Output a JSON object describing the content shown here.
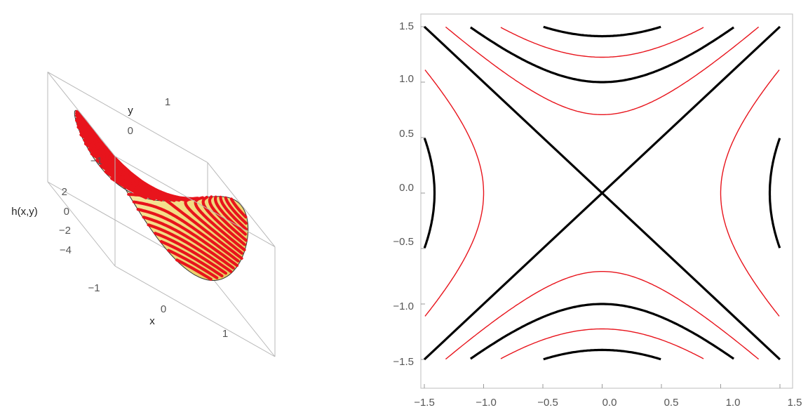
{
  "chart_data": [
    {
      "type": "surface3d",
      "function": "h(x,y) = x^2 - y^2",
      "xlabel": "x",
      "ylabel": "y",
      "zlabel": "h(x,y)",
      "x_ticks": [
        "−1",
        "0",
        "1"
      ],
      "y_ticks": [
        "−1",
        "0",
        "1"
      ],
      "z_ticks": [
        "2",
        "0",
        "−2",
        "−4"
      ],
      "xlim": [
        -1.5,
        1.5
      ],
      "ylim": [
        -1.5,
        1.5
      ],
      "zlim": [
        -4.5,
        2.3
      ],
      "surface_color": "#f3e08a",
      "contour_color": "#e8141c",
      "contour_levels": [
        -2.0,
        -1.75,
        -1.5,
        -1.25,
        -1.0,
        -0.75,
        -0.5,
        -0.25,
        0.0,
        0.25,
        0.5,
        0.75,
        1.0,
        1.25,
        1.5,
        1.75,
        2.0
      ],
      "domain": "disk",
      "domain_radius": 1.5
    },
    {
      "type": "contour",
      "function": "h(x,y) = x^2 - y^2",
      "xlim": [
        -1.5,
        1.5
      ],
      "ylim": [
        -1.5,
        1.5
      ],
      "x_ticks": [
        "−1.5",
        "−1.0",
        "−0.5",
        "0.0",
        "0.5",
        "1.0",
        "1.5"
      ],
      "y_ticks": [
        "1.5",
        "1.0",
        "0.5",
        "0.0",
        "−0.5",
        "−1.0",
        "−1.5"
      ],
      "x_tick_values": [
        -1.5,
        -1.0,
        -0.5,
        0.0,
        0.5,
        1.0,
        1.5
      ],
      "y_tick_values": [
        1.5,
        1.0,
        0.5,
        0.0,
        -0.5,
        -1.0,
        -1.5
      ],
      "series": [
        {
          "level": 0,
          "color": "#000000",
          "weight": "thick"
        },
        {
          "level": -1,
          "color": "#000000",
          "weight": "thick"
        },
        {
          "level": -2,
          "color": "#000000",
          "weight": "thick"
        },
        {
          "level": 2,
          "color": "#000000",
          "weight": "thick"
        },
        {
          "level": -0.5,
          "color": "#e8141c",
          "weight": "thin"
        },
        {
          "level": -1.5,
          "color": "#e8141c",
          "weight": "thin"
        },
        {
          "level": 1,
          "color": "#e8141c",
          "weight": "thin"
        }
      ],
      "grid": false
    }
  ]
}
